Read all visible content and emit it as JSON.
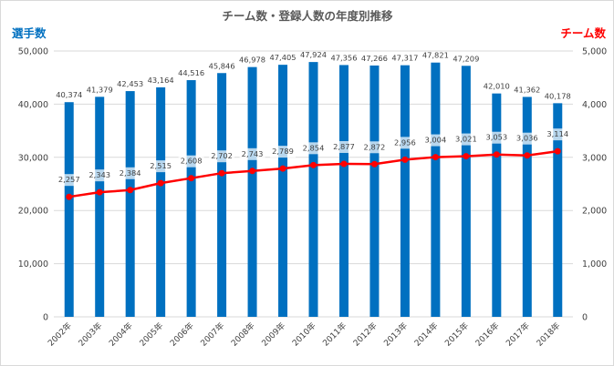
{
  "chart_data": {
    "type": "bar+line",
    "title": "チーム数・登録人数の年度別推移",
    "ylabel_left": "選手数",
    "ylabel_right": "チーム数",
    "xlabel": "",
    "categories": [
      "2002年",
      "2003年",
      "2004年",
      "2005年",
      "2006年",
      "2007年",
      "2008年",
      "2009年",
      "2010年",
      "2011年",
      "2012年",
      "2013年",
      "2014年",
      "2015年",
      "2016年",
      "2017年",
      "2018年"
    ],
    "ylim_left": [
      0,
      50000
    ],
    "yticks_left": [
      "0",
      "10,000",
      "20,000",
      "30,000",
      "40,000",
      "50,000"
    ],
    "ylim_right": [
      0,
      5000
    ],
    "yticks_right": [
      "0",
      "1,000",
      "2,000",
      "3,000",
      "4,000",
      "5,000"
    ],
    "series": [
      {
        "name": "選手数",
        "type": "bar",
        "axis": "left",
        "color": "#0070c0",
        "values": [
          40374,
          41379,
          42453,
          43164,
          44516,
          45846,
          46978,
          47405,
          47924,
          47356,
          47266,
          47317,
          47821,
          47209,
          42010,
          41362,
          40178
        ],
        "labels": [
          "40,374",
          "41,379",
          "42,453",
          "43,164",
          "44,516",
          "45,846",
          "46,978",
          "47,405",
          "47,924",
          "47,356",
          "47,266",
          "47,317",
          "47,821",
          "47,209",
          "42,010",
          "41,362",
          "40,178"
        ]
      },
      {
        "name": "チーム数",
        "type": "line",
        "axis": "right",
        "color": "#ff0000",
        "values": [
          2257,
          2343,
          2384,
          2515,
          2608,
          2702,
          2743,
          2789,
          2854,
          2877,
          2872,
          2956,
          3004,
          3021,
          3053,
          3036,
          3114
        ],
        "labels": [
          "2,257",
          "2,343",
          "2,384",
          "2,515",
          "2,608",
          "2,702",
          "2,743",
          "2,789",
          "2,854",
          "2,877",
          "2,872",
          "2,956",
          "3,004",
          "3,021",
          "3,053",
          "3,036",
          "3,114"
        ]
      }
    ],
    "grid": true,
    "legend": "none"
  }
}
